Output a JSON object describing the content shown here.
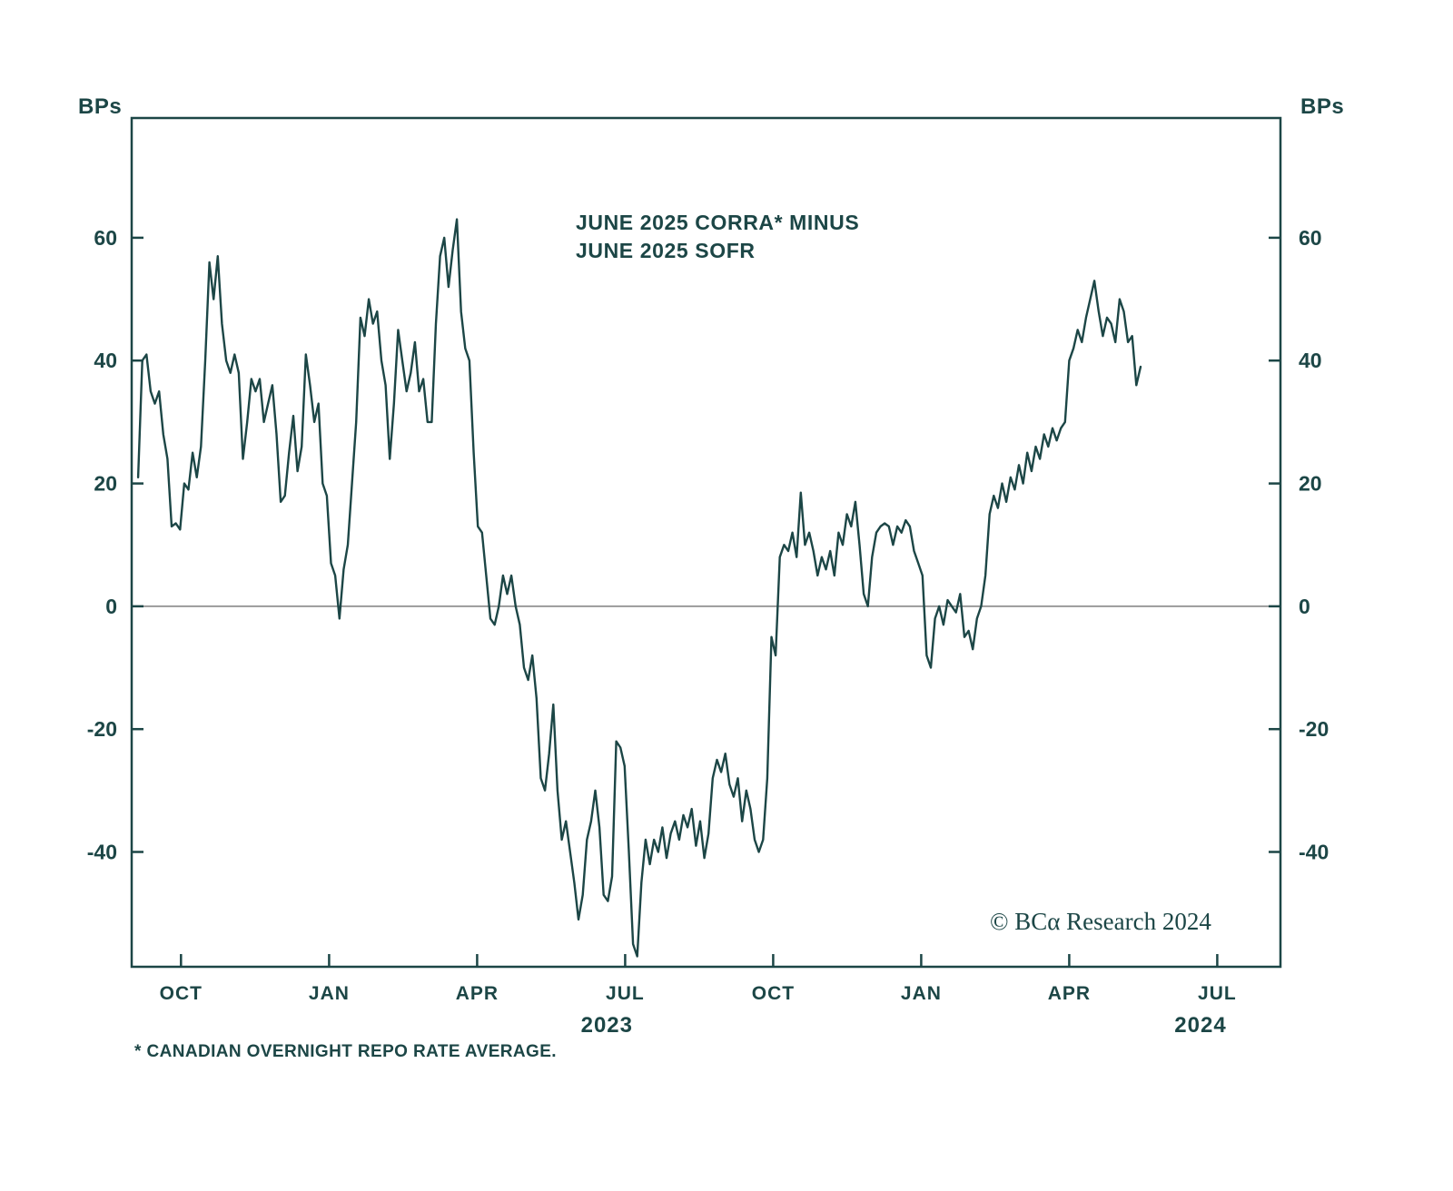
{
  "chart": {
    "title_line1": "JUNE 2025 CORRA* MINUS",
    "title_line2": "JUNE 2025 SOFR",
    "unit_label_left": "BPs",
    "unit_label_right": "BPs",
    "footnote": "* CANADIAN OVERNIGHT REPO RATE AVERAGE.",
    "copyright": "© BCα Research 2024",
    "colors": {
      "line": "#1c4646",
      "text": "#1c4646",
      "frame": "#1c4646",
      "zero_line": "#909090",
      "background": "#ffffff"
    }
  },
  "chart_data": {
    "type": "line",
    "title": "JUNE 2025 CORRA* MINUS JUNE 2025 SOFR",
    "ylabel": "BPs",
    "x_unit": "months since 2022-09-01",
    "x_start": 0.13,
    "x_step": 0.085,
    "xlim": [
      0,
      23.28
    ],
    "ylim": [
      -58.7,
      79.5
    ],
    "yticks": [
      60,
      40,
      20,
      0,
      -20,
      -40
    ],
    "xticks": [
      {
        "t": 1,
        "label": "OCT"
      },
      {
        "t": 4,
        "label": "JAN"
      },
      {
        "t": 7,
        "label": "APR"
      },
      {
        "t": 10,
        "label": "JUL"
      },
      {
        "t": 13,
        "label": "OCT"
      },
      {
        "t": 16,
        "label": "JAN"
      },
      {
        "t": 19,
        "label": "APR"
      },
      {
        "t": 22,
        "label": "JUL"
      }
    ],
    "year_labels": [
      {
        "t": 9.63,
        "label": "2023"
      },
      {
        "t": 21.66,
        "label": "2024"
      }
    ],
    "zero_line": true,
    "legend": "none",
    "grid": false,
    "values": [
      21,
      40,
      41,
      35,
      33,
      35,
      28,
      24,
      13,
      13.5,
      12.5,
      20,
      19,
      25,
      21,
      26,
      40,
      56,
      50,
      57,
      46,
      40,
      38,
      41,
      38,
      24,
      30,
      37,
      35,
      37,
      30,
      33,
      36,
      28,
      17,
      18,
      25,
      31,
      22,
      26,
      41,
      36,
      30,
      33,
      20,
      18,
      7,
      5,
      -2,
      6,
      10,
      20,
      30,
      47,
      44,
      50,
      46,
      48,
      40,
      36,
      24,
      33,
      45,
      40,
      35,
      38,
      43,
      35,
      37,
      30,
      30,
      46,
      57,
      60,
      52,
      58,
      63,
      48,
      42,
      40,
      25,
      13,
      12,
      5,
      -2,
      -3,
      0,
      5,
      2,
      5,
      0,
      -3,
      -10,
      -12,
      -8,
      -15,
      -28,
      -30,
      -24,
      -16,
      -30,
      -38,
      -35,
      -40,
      -45,
      -51,
      -47,
      -38,
      -35,
      -30,
      -36,
      -47,
      -48,
      -44,
      -22,
      -23,
      -26,
      -40,
      -55,
      -57,
      -45,
      -38,
      -42,
      -38,
      -40,
      -36,
      -41,
      -37,
      -35,
      -38,
      -34,
      -36,
      -33,
      -39,
      -35,
      -41,
      -37,
      -28,
      -25,
      -27,
      -24,
      -29,
      -31,
      -28,
      -35,
      -30,
      -33,
      -38,
      -40,
      -38,
      -28,
      -5,
      -8,
      8,
      10,
      9,
      12,
      8,
      18.5,
      10,
      12,
      9,
      5,
      8,
      6,
      9,
      5,
      12,
      10,
      15,
      13,
      17,
      10,
      2,
      0,
      8,
      12,
      13,
      13.5,
      13,
      10,
      13,
      12,
      14,
      13,
      9,
      7,
      5,
      -8,
      -10,
      -2,
      0,
      -3,
      1,
      0,
      -1,
      2,
      -5,
      -4,
      -7,
      -2,
      0,
      5,
      15,
      18,
      16,
      20,
      17,
      21,
      19,
      23,
      20,
      25,
      22,
      26,
      24,
      28,
      26,
      29,
      27,
      29,
      30,
      40,
      42,
      45,
      43,
      47,
      50,
      53,
      48,
      44,
      47,
      46,
      43,
      50,
      48,
      43,
      44,
      36,
      39
    ]
  }
}
